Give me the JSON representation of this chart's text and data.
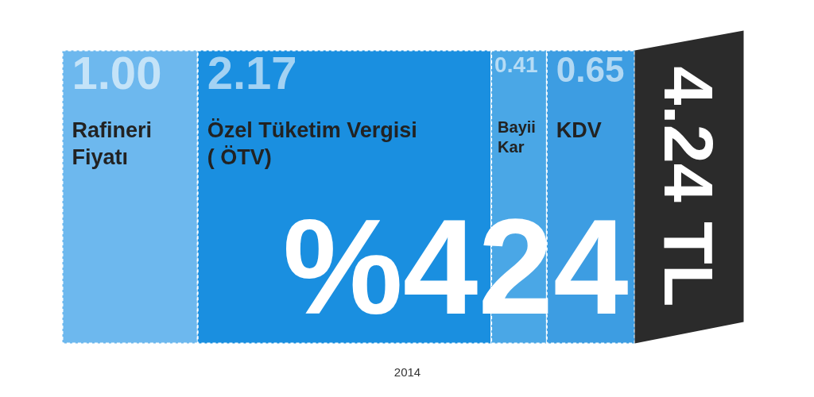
{
  "chart_data": {
    "type": "bar",
    "orientation": "horizontal",
    "stacked": true,
    "categories": [
      null
    ],
    "series": [
      {
        "name": "Rafineri Fiyatı",
        "color": "#6db8ee",
        "values": [
          1.0
        ],
        "value_labels": [
          "1.00"
        ]
      },
      {
        "name": "Özel Tüketim Vergisi ( ÖTV)",
        "color": "#1a8fe0",
        "values": [
          2.17
        ],
        "value_labels": [
          "2.17"
        ]
      },
      {
        "name": "Bayii Kar",
        "color": "#4aa7e6",
        "values": [
          0.41
        ],
        "value_labels": [
          "0.41"
        ]
      },
      {
        "name": "KDV",
        "color": "#3d9de2",
        "values": [
          0.65
        ],
        "value_labels": [
          "0.65"
        ]
      }
    ],
    "totals": [
      "4.24 TL"
    ],
    "annotations": [
      "%424",
      "2014"
    ],
    "grid": false,
    "tick_labels": false
  }
}
